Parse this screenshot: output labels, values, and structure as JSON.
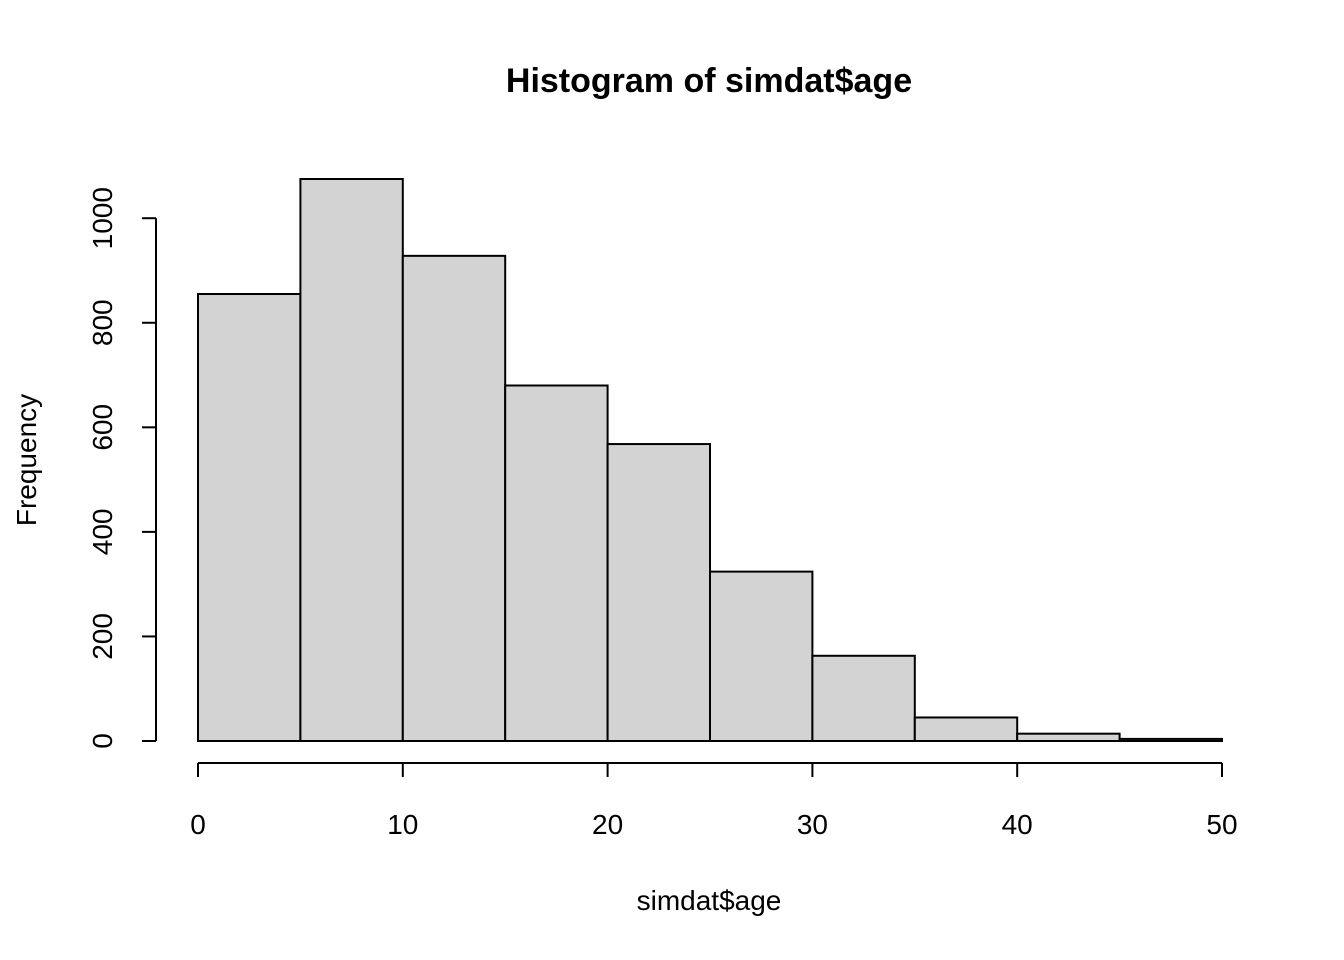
{
  "chart_data": {
    "type": "bar",
    "title": "Histogram of simdat$age",
    "xlabel": "simdat$age",
    "ylabel": "Frequency",
    "bins": [
      {
        "start": 0,
        "end": 5,
        "count": 855
      },
      {
        "start": 5,
        "end": 10,
        "count": 1075
      },
      {
        "start": 10,
        "end": 15,
        "count": 928
      },
      {
        "start": 15,
        "end": 20,
        "count": 680
      },
      {
        "start": 20,
        "end": 25,
        "count": 568
      },
      {
        "start": 25,
        "end": 30,
        "count": 324
      },
      {
        "start": 30,
        "end": 35,
        "count": 163
      },
      {
        "start": 35,
        "end": 40,
        "count": 45
      },
      {
        "start": 40,
        "end": 45,
        "count": 14
      },
      {
        "start": 45,
        "end": 50,
        "count": 4
      }
    ],
    "xlim": [
      0,
      50
    ],
    "ylim": [
      0,
      1075
    ],
    "xticks": [
      0,
      10,
      20,
      30,
      40,
      50
    ],
    "yticks": [
      0,
      200,
      400,
      600,
      800,
      1000
    ],
    "grid": false,
    "colors": {
      "bar_fill": "#d3d3d3",
      "bar_stroke": "#000000"
    }
  }
}
